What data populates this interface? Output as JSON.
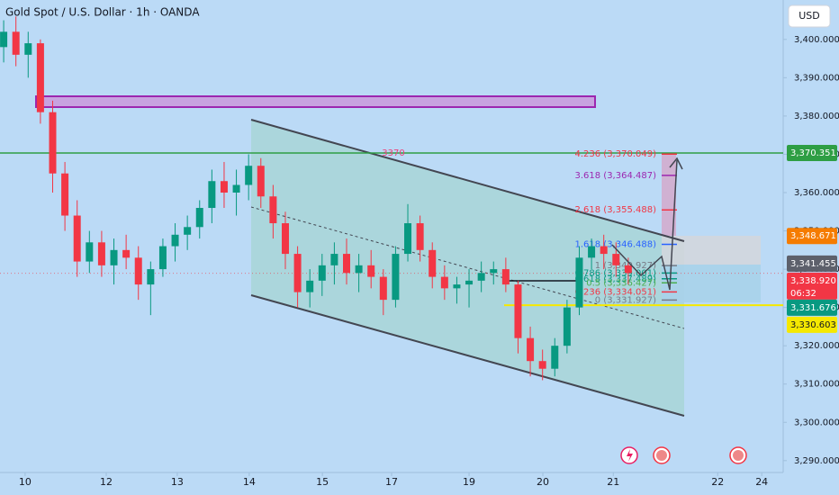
{
  "chart_data": {
    "type": "candlestick",
    "title": "Gold Spot / U.S. Dollar · 1h · OANDA",
    "currency": "USD",
    "annotation": "3370",
    "countdown": "06:32",
    "up_color": "#089981",
    "down_color": "#f23645",
    "grid": false,
    "xlim": [
      -8.2,
      247.6
    ],
    "ylim": [
      3286.9,
      3410.3
    ],
    "xticks": [
      {
        "value": 0,
        "label": "10"
      },
      {
        "value": 26.5,
        "label": "12"
      },
      {
        "value": 49.7,
        "label": "13"
      },
      {
        "value": 73.2,
        "label": "14"
      },
      {
        "value": 97.1,
        "label": "15"
      },
      {
        "value": 119.7,
        "label": "17"
      },
      {
        "value": 145,
        "label": "19"
      },
      {
        "value": 169.1,
        "label": "20"
      },
      {
        "value": 192.1,
        "label": "21"
      },
      {
        "value": 226.2,
        "label": "22"
      },
      {
        "value": 240.6,
        "label": "24"
      }
    ],
    "yticks": [
      {
        "value": 3290,
        "label": "3,290.000"
      },
      {
        "value": 3300,
        "label": "3,300.000"
      },
      {
        "value": 3310,
        "label": "3,310.000"
      },
      {
        "value": 3320,
        "label": "3,320.000"
      },
      {
        "value": 3330,
        "label": "3,330.000"
      },
      {
        "value": 3340,
        "label": "3,340.000"
      },
      {
        "value": 3350,
        "label": "3,350.000"
      },
      {
        "value": 3360,
        "label": "3,360.000"
      },
      {
        "value": 3370,
        "label": "3,370.000"
      },
      {
        "value": 3380,
        "label": "3,380.000"
      },
      {
        "value": 3390,
        "label": "3,390.000"
      },
      {
        "value": 3400,
        "label": "3,400.000"
      }
    ],
    "x": [
      -7,
      -3,
      1,
      5,
      9,
      13,
      17,
      21,
      25,
      29,
      33,
      37,
      41,
      45,
      49,
      53,
      57,
      61,
      65,
      69,
      73,
      77,
      81,
      85,
      89,
      93,
      97,
      101,
      105,
      109,
      113,
      117,
      121,
      125,
      129,
      133,
      137,
      141,
      145,
      149,
      153,
      157,
      161,
      165,
      169,
      173,
      177,
      181,
      185,
      189,
      193,
      197
    ],
    "open": [
      3398,
      3402,
      3396,
      3399,
      3381,
      3365,
      3354,
      3342,
      3347,
      3341,
      3345,
      3343,
      3336,
      3340,
      3346,
      3349,
      3351,
      3356,
      3363,
      3360,
      3362,
      3367,
      3359,
      3352,
      3344,
      3334,
      3337,
      3341,
      3344,
      3339,
      3341,
      3338,
      3332,
      3344,
      3352,
      3345,
      3338,
      3335,
      3336,
      3337,
      3339,
      3340,
      3336,
      3322,
      3316,
      3314,
      3320,
      3330,
      3343,
      3346,
      3344,
      3341
    ],
    "high": [
      3405,
      3406,
      3402,
      3400,
      3384,
      3368,
      3358,
      3350,
      3350,
      3348,
      3349,
      3346,
      3342,
      3348,
      3352,
      3354,
      3358,
      3366,
      3368,
      3366,
      3370,
      3369,
      3362,
      3355,
      3346,
      3340,
      3344,
      3347,
      3348,
      3344,
      3345,
      3340,
      3346,
      3357,
      3354,
      3347,
      3341,
      3338,
      3340,
      3342,
      3342,
      3343,
      3337,
      3325,
      3319,
      3322,
      3332,
      3346,
      3348,
      3349,
      3347,
      3343
    ],
    "low": [
      3394,
      3393,
      3390,
      3378,
      3360,
      3350,
      3338,
      3339,
      3338,
      3336,
      3340,
      3332,
      3328,
      3338,
      3342,
      3345,
      3348,
      3352,
      3356,
      3354,
      3358,
      3356,
      3348,
      3340,
      3330,
      3330,
      3333,
      3336,
      3336,
      3334,
      3335,
      3328,
      3330,
      3342,
      3342,
      3335,
      3332,
      3331,
      3330,
      3334,
      3336,
      3334,
      3318,
      3312,
      3311,
      3312,
      3318,
      3328,
      3340,
      3340,
      3338,
      3336
    ],
    "close": [
      3402,
      3396,
      3399,
      3381,
      3365,
      3354,
      3342,
      3347,
      3341,
      3345,
      3343,
      3336,
      3340,
      3346,
      3349,
      3351,
      3356,
      3363,
      3360,
      3362,
      3367,
      3359,
      3352,
      3344,
      3334,
      3337,
      3341,
      3344,
      3339,
      3341,
      3338,
      3332,
      3344,
      3352,
      3345,
      3338,
      3335,
      3336,
      3337,
      3339,
      3340,
      3336,
      3322,
      3316,
      3314,
      3320,
      3330,
      3343,
      3346,
      3344,
      3341,
      3339
    ],
    "fib_levels": [
      {
        "value": 3370.049,
        "label": "4.236 (3,370.049)",
        "color": "#f23645"
      },
      {
        "value": 3364.487,
        "label": "3.618 (3,364.487)",
        "color": "#9c27b0"
      },
      {
        "value": 3355.488,
        "label": "2.618 (3,355.488)",
        "color": "#f23645"
      },
      {
        "value": 3346.488,
        "label": "1.618 (3,346.488)",
        "color": "#2962ff"
      },
      {
        "value": 3340.927,
        "label": "1 (3,340.927)",
        "color": "#787b86"
      },
      {
        "value": 3339.001,
        "label": "0.786 (3,339.001)",
        "color": "#089981"
      },
      {
        "value": 3337.489,
        "label": "0.618 (3,337.489)",
        "color": "#089981"
      },
      {
        "value": 3336.427,
        "label": "0.5 (3,336.427)",
        "color": "#4caf50"
      },
      {
        "value": 3334.051,
        "label": "0.236 (3,334.051)",
        "color": "#f23645"
      },
      {
        "value": 3331.927,
        "label": "0 (3,331.927)",
        "color": "#787b86"
      }
    ],
    "price_labels": [
      {
        "value": 3370.351,
        "label": "3,370.351",
        "color": "#2e9e44"
      },
      {
        "value": 3348.671,
        "label": "3,348.671",
        "color": "#f57c00"
      },
      {
        "value": 3341.455,
        "label": "3,341.455",
        "color": "#5d606b"
      },
      {
        "value": 3338.92,
        "label": "3,338.920",
        "color": "#f23645"
      },
      {
        "value": 3331.676,
        "label": "3,331.676",
        "color": "#089981"
      },
      {
        "value": 3330.603,
        "label": "3,330.603",
        "color": "#f5e800"
      }
    ]
  }
}
